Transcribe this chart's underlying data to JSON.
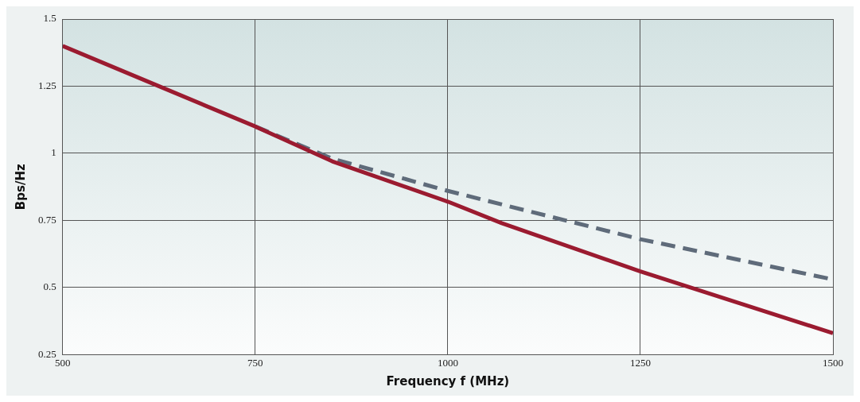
{
  "chart_data": {
    "type": "line",
    "xlabel": "Frequency f (MHz)",
    "ylabel": "Bps/Hz",
    "xlim": [
      500,
      1500
    ],
    "xticks": [
      500,
      750,
      1000,
      1250,
      1500
    ],
    "ylim": [
      0.25,
      1.5
    ],
    "yticks": [
      0.25,
      0.5,
      0.75,
      1,
      1.25,
      1.5
    ],
    "grid": true,
    "legend": false,
    "series": [
      {
        "color": "#9b1b30",
        "line_style": "solid",
        "x": [
          500,
          600,
          750,
          850,
          1000,
          1070,
          1250,
          1500
        ],
        "values": [
          1.4,
          1.28,
          1.1,
          0.97,
          0.82,
          0.74,
          0.56,
          0.33
        ]
      },
      {
        "color": "#5f6b7a",
        "line_style": "dashed",
        "x": [
          750,
          850,
          1000,
          1250,
          1500
        ],
        "values": [
          1.1,
          0.98,
          0.86,
          0.68,
          0.53
        ]
      }
    ]
  }
}
